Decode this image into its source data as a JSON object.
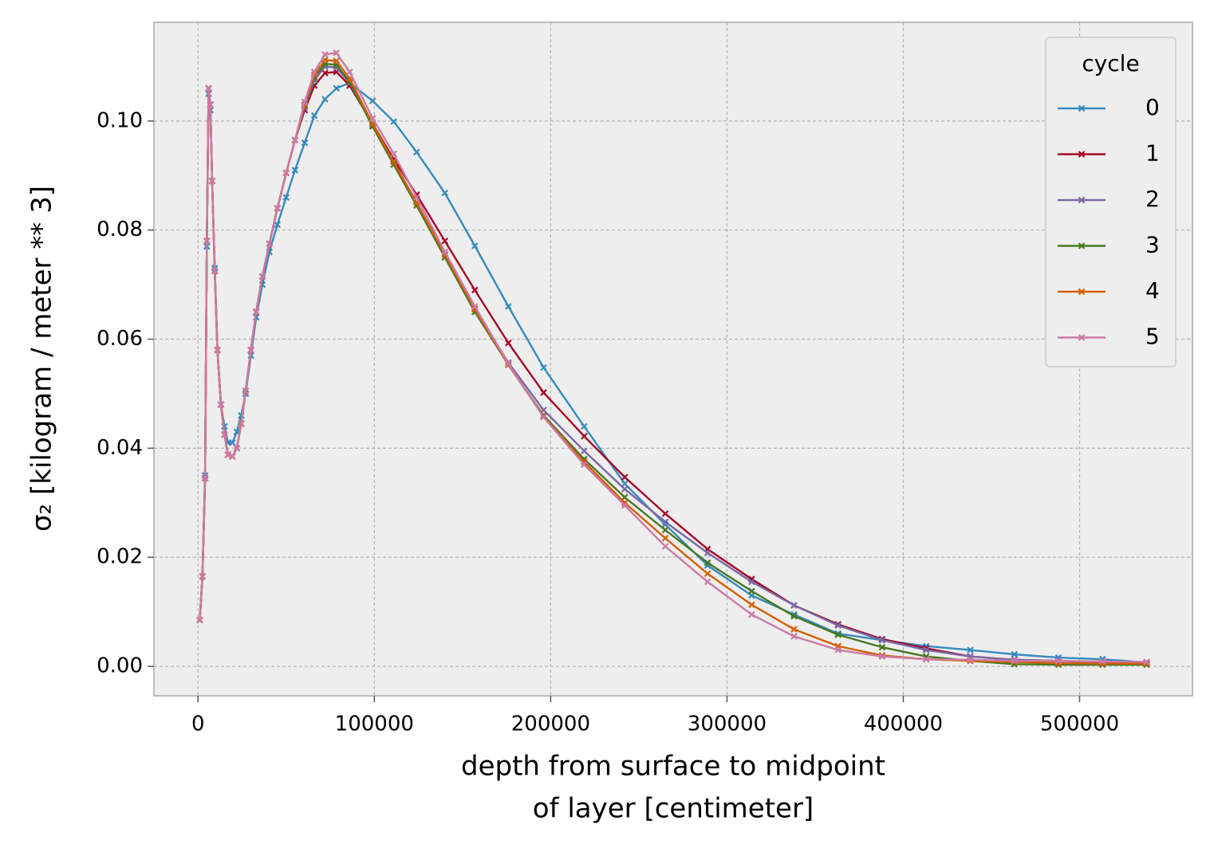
{
  "chart_data": {
    "type": "line",
    "xlabel": [
      "depth from surface to midpoint",
      "of layer [centimeter]"
    ],
    "ylabel": "σ₂ [kilogram / meter ** 3]",
    "xlim": [
      -25000,
      564000
    ],
    "ylim": [
      -0.0054,
      0.1181
    ],
    "xticks": [
      0,
      100000,
      200000,
      300000,
      400000,
      500000
    ],
    "yticks": [
      {
        "value": 0,
        "label": "0.00"
      },
      {
        "value": 0.02,
        "label": "0.02"
      },
      {
        "value": 0.04,
        "label": "0.04"
      },
      {
        "value": 0.06,
        "label": "0.06"
      },
      {
        "value": 0.08,
        "label": "0.08"
      },
      {
        "value": 0.1,
        "label": "0.10"
      }
    ],
    "grid": true,
    "legend_title": "cycle",
    "legend_loc": "upper right",
    "x": [
      1000,
      2500,
      4000,
      5000,
      6000,
      7000,
      8000,
      9500,
      11000,
      13000,
      15000,
      17000,
      19500,
      22000,
      24500,
      27000,
      30000,
      33000,
      36500,
      40500,
      45000,
      50000,
      55000,
      60500,
      66000,
      72000,
      78500,
      86000,
      99000,
      111000,
      124000,
      140000,
      157000,
      176000,
      196000,
      219000,
      242000,
      265000,
      289000,
      314000,
      338000,
      363000,
      388000,
      413000,
      438000,
      463000,
      488000,
      513000,
      538000
    ],
    "series": [
      {
        "name": "0",
        "color": "#348ABD",
        "values": [
          0.0085,
          0.0165,
          0.035,
          0.077,
          0.105,
          0.102,
          0.089,
          0.073,
          0.058,
          0.048,
          0.044,
          0.041,
          0.041,
          0.043,
          0.046,
          0.05,
          0.057,
          0.064,
          0.07,
          0.076,
          0.081,
          0.086,
          0.091,
          0.096,
          0.101,
          0.104,
          0.106,
          0.107,
          0.1037,
          0.0999,
          0.0943,
          0.0868,
          0.0771,
          0.066,
          0.0548,
          0.044,
          0.0335,
          0.026,
          0.0185,
          0.013,
          0.0095,
          0.006,
          0.0048,
          0.0037,
          0.003,
          0.0022,
          0.0016,
          0.0013,
          0.0007
        ]
      },
      {
        "name": "1",
        "color": "#A60628",
        "values": [
          0.0085,
          0.0165,
          0.0345,
          0.078,
          0.106,
          0.103,
          0.089,
          0.0725,
          0.058,
          0.048,
          0.0425,
          0.0388,
          0.0385,
          0.04,
          0.0445,
          0.0505,
          0.058,
          0.065,
          0.0715,
          0.0775,
          0.084,
          0.0905,
          0.0965,
          0.102,
          0.1065,
          0.1088,
          0.109,
          0.1065,
          0.0995,
          0.093,
          0.0865,
          0.078,
          0.069,
          0.0593,
          0.0502,
          0.0422,
          0.0347,
          0.028,
          0.0215,
          0.016,
          0.0112,
          0.0077,
          0.005,
          0.0033,
          0.0018,
          0.0012,
          0.001,
          0.0008,
          0.0007
        ]
      },
      {
        "name": "2",
        "color": "#7A68A6",
        "values": [
          0.0085,
          0.0165,
          0.0345,
          0.078,
          0.106,
          0.103,
          0.089,
          0.0725,
          0.058,
          0.048,
          0.0425,
          0.0388,
          0.0385,
          0.04,
          0.0445,
          0.0505,
          0.058,
          0.065,
          0.0715,
          0.0775,
          0.084,
          0.0905,
          0.0965,
          0.1025,
          0.1075,
          0.11,
          0.1098,
          0.107,
          0.0993,
          0.0925,
          0.085,
          0.0755,
          0.0655,
          0.0557,
          0.047,
          0.0395,
          0.0325,
          0.0265,
          0.0208,
          0.0155,
          0.0112,
          0.0075,
          0.0048,
          0.003,
          0.0018,
          0.0012,
          0.001,
          0.0008,
          0.0006
        ]
      },
      {
        "name": "3",
        "color": "#467821",
        "values": [
          0.0085,
          0.0165,
          0.0345,
          0.078,
          0.106,
          0.103,
          0.089,
          0.0725,
          0.058,
          0.048,
          0.0425,
          0.0388,
          0.0385,
          0.04,
          0.0445,
          0.0505,
          0.058,
          0.065,
          0.0715,
          0.0775,
          0.084,
          0.0905,
          0.0965,
          0.1028,
          0.108,
          0.1105,
          0.1103,
          0.1072,
          0.099,
          0.092,
          0.0845,
          0.075,
          0.065,
          0.0553,
          0.046,
          0.038,
          0.031,
          0.025,
          0.019,
          0.0138,
          0.0092,
          0.0058,
          0.0035,
          0.0018,
          0.001,
          0.0004,
          0.0003,
          0.0003,
          0.0003
        ]
      },
      {
        "name": "4",
        "color": "#D55E00",
        "values": [
          0.0085,
          0.0165,
          0.0345,
          0.078,
          0.106,
          0.103,
          0.089,
          0.0725,
          0.058,
          0.048,
          0.0425,
          0.0388,
          0.0385,
          0.04,
          0.0445,
          0.0505,
          0.058,
          0.065,
          0.0715,
          0.0775,
          0.084,
          0.0905,
          0.0965,
          0.103,
          0.1085,
          0.1112,
          0.111,
          0.1078,
          0.0995,
          0.0925,
          0.085,
          0.0755,
          0.0655,
          0.0553,
          0.0458,
          0.0375,
          0.03,
          0.0235,
          0.017,
          0.0113,
          0.0068,
          0.0037,
          0.002,
          0.0013,
          0.001,
          0.0008,
          0.0006,
          0.0005,
          0.0005
        ]
      },
      {
        "name": "5",
        "color": "#CC79A7",
        "values": [
          0.0085,
          0.0165,
          0.0345,
          0.078,
          0.106,
          0.103,
          0.089,
          0.0725,
          0.058,
          0.048,
          0.0425,
          0.0388,
          0.0385,
          0.04,
          0.0445,
          0.0505,
          0.058,
          0.065,
          0.0715,
          0.0775,
          0.084,
          0.0905,
          0.0965,
          0.1035,
          0.109,
          0.1122,
          0.1125,
          0.109,
          0.1005,
          0.094,
          0.086,
          0.076,
          0.066,
          0.0555,
          0.0457,
          0.037,
          0.0295,
          0.022,
          0.0155,
          0.0095,
          0.0055,
          0.003,
          0.0018,
          0.0013,
          0.0012,
          0.001,
          0.001,
          0.0009,
          0.0008
        ]
      }
    ]
  }
}
